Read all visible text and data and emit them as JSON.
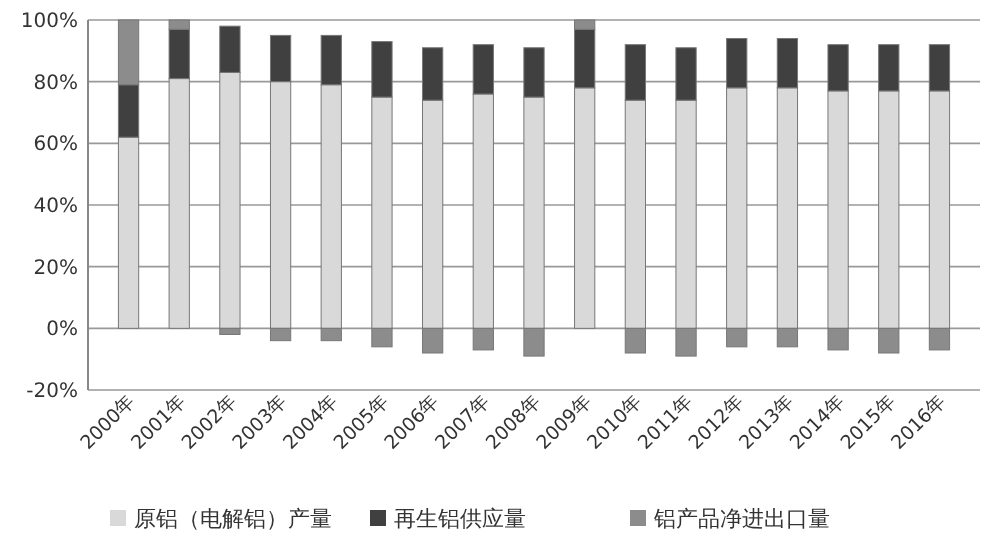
{
  "chart_data": {
    "type": "bar",
    "stacked": true,
    "categories": [
      "2000年",
      "2001年",
      "2002年",
      "2003年",
      "2004年",
      "2005年",
      "2006年",
      "2007年",
      "2008年",
      "2009年",
      "2010年",
      "2011年",
      "2012年",
      "2013年",
      "2014年",
      "2015年",
      "2016年"
    ],
    "series": [
      {
        "name": "原铝（电解铝）产量",
        "color": "#d9d9d9",
        "values": [
          62,
          81,
          83,
          80,
          79,
          75,
          74,
          76,
          75,
          78,
          74,
          74,
          78,
          78,
          77,
          77,
          77
        ]
      },
      {
        "name": "再生铝供应量",
        "color": "#404040",
        "values": [
          17,
          16,
          15,
          15,
          16,
          18,
          17,
          16,
          16,
          19,
          18,
          17,
          16,
          16,
          15,
          15,
          15
        ]
      },
      {
        "name": "铝产品净进出口量",
        "color": "#8c8c8c",
        "values": [
          21,
          3,
          -2,
          -4,
          -4,
          -6,
          -8,
          -7,
          -9,
          3,
          -8,
          -9,
          -6,
          -6,
          -7,
          -8,
          -7
        ]
      }
    ],
    "ylim": [
      -20,
      100
    ],
    "yticks": [
      {
        "value": -20,
        "label": "-20%"
      },
      {
        "value": 0,
        "label": "0%"
      },
      {
        "value": 20,
        "label": "20%"
      },
      {
        "value": 40,
        "label": "40%"
      },
      {
        "value": 60,
        "label": "60%"
      },
      {
        "value": 80,
        "label": "80%"
      },
      {
        "value": 100,
        "label": "100%"
      }
    ],
    "grid": true,
    "legend": "bottom"
  }
}
